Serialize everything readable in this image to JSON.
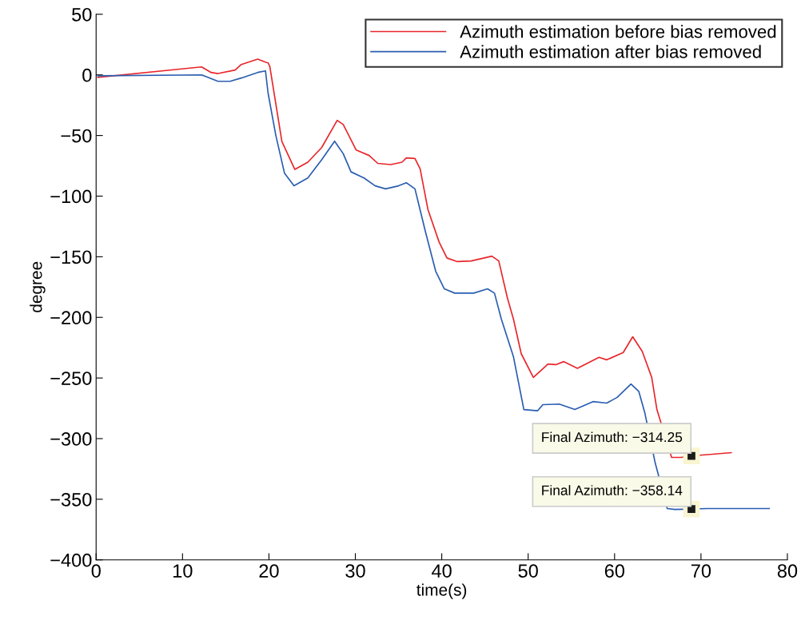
{
  "chart_data": {
    "type": "line",
    "xlabel": "time(s)",
    "ylabel": "degree",
    "xlim": [
      0,
      80
    ],
    "xticks": [
      0,
      10,
      20,
      30,
      40,
      50,
      60,
      70,
      80
    ],
    "ylim": [
      -400,
      50
    ],
    "yticks": [
      {
        "value": -400,
        "label": "−400"
      },
      {
        "value": -350,
        "label": "−350"
      },
      {
        "value": -300,
        "label": "−300"
      },
      {
        "value": -250,
        "label": "−250"
      },
      {
        "value": -200,
        "label": "−200"
      },
      {
        "value": -150,
        "label": "−150"
      },
      {
        "value": -100,
        "label": "−100"
      },
      {
        "value": -50,
        "label": "−50"
      },
      0,
      50
    ],
    "grid": false,
    "legend": "top right",
    "marker": "none",
    "line_style": "solid",
    "series": [
      {
        "name": "Azimuth estimation before bias removed",
        "color": "#e8262b",
        "x": [
          0.2,
          12.2,
          13.3,
          14.1,
          16.1,
          16.8,
          18.7,
          19.6,
          19.9,
          20.1,
          21.5,
          23,
          24.5,
          26.1,
          27.9,
          28.6,
          30.1,
          31.6,
          32.6,
          34.1,
          35.4,
          35.9,
          36.9,
          37.5,
          38.4,
          39.7,
          40.6,
          41.8,
          43.4,
          45.8,
          46.6,
          47.6,
          48.3,
          49.2,
          50.6,
          52.3,
          53.2,
          54.1,
          55.7,
          58.2,
          59.1,
          61,
          62.1,
          63.2,
          64.3,
          64.9,
          66.6,
          67.7,
          68.9,
          70.2,
          73.5
        ],
        "values": [
          -2,
          6.6,
          2,
          1.1,
          4,
          8.6,
          13,
          10.5,
          9.9,
          7,
          -55,
          -78,
          -72,
          -60,
          -37.5,
          -41,
          -62,
          -66.5,
          -73,
          -74,
          -72,
          -68.5,
          -69,
          -77.5,
          -111,
          -138,
          -151,
          -154,
          -153.5,
          -149.5,
          -153.5,
          -184,
          -201.5,
          -230,
          -249.5,
          -238.5,
          -239,
          -236.5,
          -242,
          -233,
          -235,
          -229,
          -216,
          -228,
          -249.5,
          -276,
          -315.5,
          -315.5,
          -314.25,
          -313.5,
          -311.6
        ]
      },
      {
        "name": "Azimuth estimation after bias removed",
        "color": "#2a5db0",
        "x": [
          0.2,
          12.2,
          14.1,
          15.5,
          16.8,
          18.7,
          19.6,
          19.9,
          20.8,
          21.8,
          22.9,
          24.5,
          26.1,
          27.6,
          28.6,
          29.5,
          31,
          32.3,
          33.5,
          35,
          35.9,
          36.9,
          38.1,
          39.3,
          40.3,
          41.5,
          43.7,
          45.3,
          46.1,
          46.9,
          48.3,
          49.5,
          51.1,
          51.7,
          53.6,
          55.4,
          57.5,
          59.1,
          60.3,
          61.9,
          62.8,
          63.5,
          64.7,
          66.1,
          67,
          68.9,
          70.7,
          77.9
        ],
        "values": [
          -0.7,
          0,
          -5.3,
          -5.3,
          -2.6,
          2,
          3.3,
          -15,
          -50,
          -81,
          -91.5,
          -85,
          -70,
          -54.7,
          -65,
          -80,
          -85,
          -91.5,
          -94,
          -91.5,
          -89,
          -94,
          -129,
          -162,
          -176.5,
          -180,
          -180,
          -176.5,
          -180,
          -201.5,
          -232.5,
          -276,
          -277,
          -272,
          -271.5,
          -276,
          -269.5,
          -270.7,
          -266,
          -255,
          -261,
          -278.7,
          -320,
          -357.7,
          -358.4,
          -358.14,
          -357.7,
          -357.7
        ]
      }
    ],
    "annotations": [
      {
        "text": "Final Azimuth: −314.25",
        "x": 68.9,
        "y": -314.25
      },
      {
        "text": "Final Azimuth: −358.14",
        "x": 68.9,
        "y": -358.14
      }
    ]
  }
}
